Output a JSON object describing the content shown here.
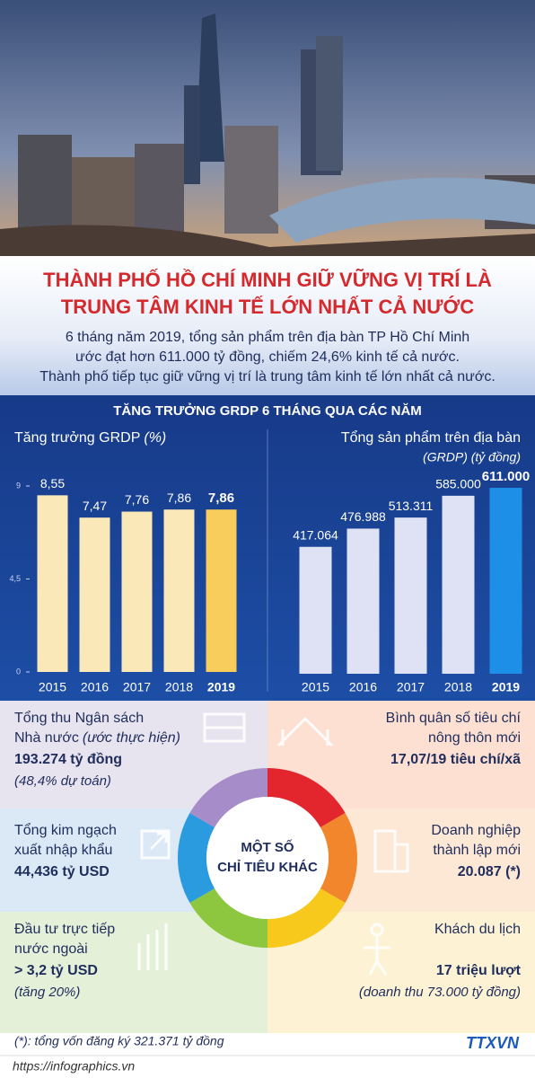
{
  "header": {
    "title_lines": [
      "THÀNH PHỐ HỒ CHÍ MINH GIỮ VỮNG VỊ TRÍ LÀ",
      "TRUNG TÂM KINH TẾ LỚN NHẤT CẢ NƯỚC"
    ],
    "intro_lines": [
      "6 tháng năm 2019, tổng sản phẩm trên địa bàn TP Hồ Chí Minh",
      "ước đạt hơn 611.000 tỷ đồng, chiếm 24,6% kinh tế cả nước.",
      "Thành phố tiếp tục giữ vững vị trí là trung tâm kinh tế lớn nhất cả nước."
    ]
  },
  "section_title": "TĂNG TRƯỞNG  GRDP 6 THÁNG QUA CÁC NĂM",
  "chart_data": [
    {
      "type": "bar",
      "title": "Tăng trưởng GRDP",
      "title_note": "(%)",
      "categories": [
        "2015",
        "2016",
        "2017",
        "2018",
        "2019"
      ],
      "values": [
        8.55,
        7.47,
        7.76,
        7.86,
        7.86
      ],
      "value_labels": [
        "8,55",
        "7,47",
        "7,76",
        "7,86",
        "7,86"
      ],
      "colors": [
        "#fbe8b8",
        "#fbe8b8",
        "#fbe8b8",
        "#fbe8b8",
        "#f8cd5c"
      ],
      "ylim": [
        0,
        9
      ],
      "yticks": [
        0,
        {
          "value": 4.5,
          "label": "4,5"
        },
        9
      ]
    },
    {
      "type": "bar",
      "title": "Tổng sản phẩm trên địa bàn",
      "subtitle": "(GRDP) (tỷ đồng)",
      "categories": [
        "2015",
        "2016",
        "2017",
        "2018",
        "2019"
      ],
      "values": [
        417064,
        476988,
        513311,
        585000,
        611000
      ],
      "value_labels": [
        "417.064",
        "476.988",
        "513.311",
        "585.000",
        "611.000"
      ],
      "colors": [
        "#dfe2f4",
        "#dfe2f4",
        "#dfe2f4",
        "#dfe2f4",
        "#1e8fe6"
      ],
      "ylim": [
        0,
        620000
      ]
    }
  ],
  "center_label": [
    "MỘT SỐ",
    "CHỈ TIÊU KHÁC"
  ],
  "indicators": [
    {
      "title_lines": [
        "Tổng thu Ngân sách",
        "Nhà nước"
      ],
      "title_note": "(ước thực hiện)",
      "value": "193.274 tỷ đồng",
      "detail": "(48,4% dự toán)"
    },
    {
      "title_lines": [
        "Bình quân số tiêu chí",
        "nông thôn mới"
      ],
      "value": "17,07/19 tiêu chí/xã"
    },
    {
      "title_lines": [
        "Tổng kim ngạch",
        "xuất nhập khẩu"
      ],
      "value": "44,436 tỷ USD"
    },
    {
      "title_lines": [
        "Doanh nghiệp",
        "thành lập mới"
      ],
      "value": "20.087 (*)"
    },
    {
      "title_lines": [
        "Đầu tư trực tiếp",
        "nước ngoài"
      ],
      "value": "> 3,2 tỷ USD",
      "detail": "(tăng 20%)"
    },
    {
      "title_lines": [
        "Khách du lịch"
      ],
      "value": "17 triệu lượt",
      "detail": "(doanh thu 73.000 tỷ đồng)"
    }
  ],
  "footnote": "(*): tổng vốn đăng ký 321.371 tỷ đồng",
  "source": "https://infographics.vn",
  "logo": "TTXVN"
}
